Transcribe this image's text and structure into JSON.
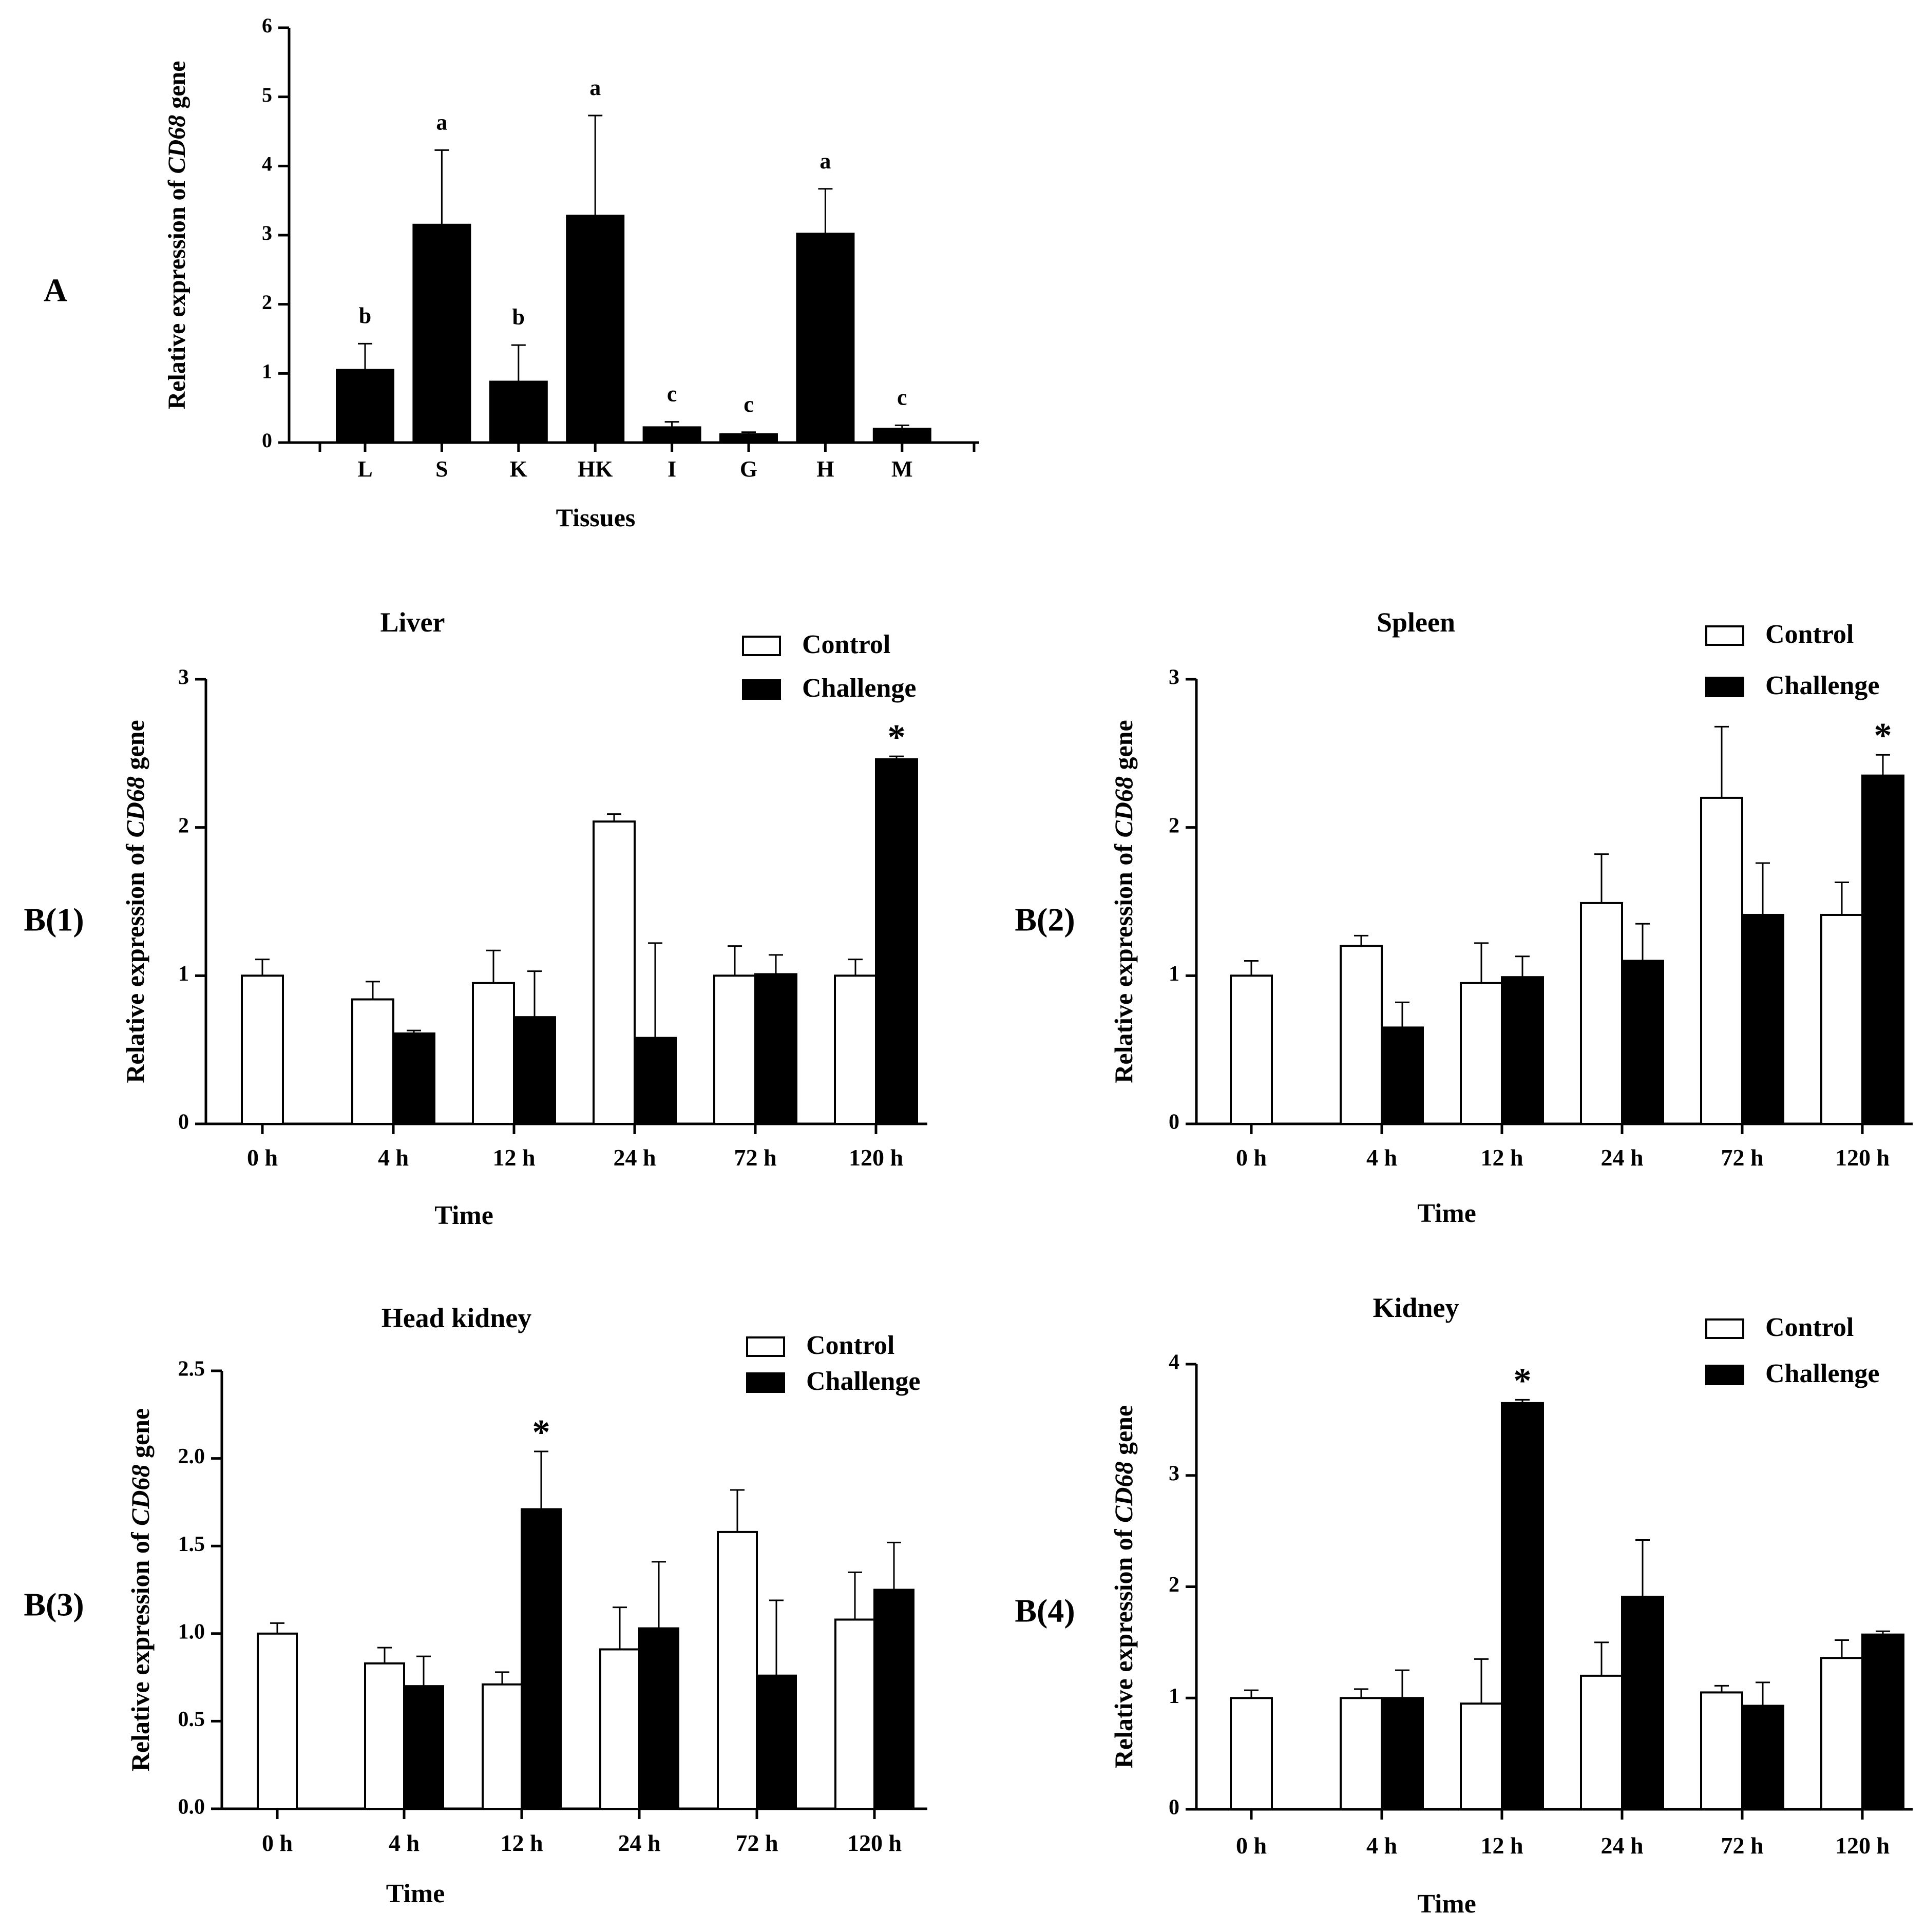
{
  "chart_data": [
    {
      "id": "A",
      "type": "bar",
      "panel_label": "A",
      "title": "",
      "xlabel": "Tissues",
      "ylabel_prefix": "Relative expression of ",
      "ylabel_gene": "CD68",
      "ylabel_suffix": " gene",
      "ylim": [
        0,
        6
      ],
      "yticks": [
        "0",
        "1",
        "2",
        "3",
        "4",
        "5",
        "6"
      ],
      "categories": [
        "L",
        "S",
        "K",
        "HK",
        "I",
        "G",
        "H",
        "M"
      ],
      "series": [
        {
          "name": "Relative expression",
          "color": "#000000",
          "values": [
            1.05,
            3.15,
            0.88,
            3.28,
            0.22,
            0.12,
            3.02,
            0.2
          ],
          "errors": [
            0.38,
            1.08,
            0.53,
            1.45,
            0.08,
            0.03,
            0.65,
            0.05
          ]
        }
      ],
      "annotations": [
        "b",
        "a",
        "b",
        "a",
        "c",
        "c",
        "a",
        "c"
      ]
    },
    {
      "id": "B1",
      "type": "bar",
      "panel_label": "B(1)",
      "title": "Liver",
      "xlabel": "Time",
      "ylabel_prefix": "Relative expression of ",
      "ylabel_gene": "CD68",
      "ylabel_suffix": " gene",
      "ylim": [
        0,
        3
      ],
      "yticks": [
        "0",
        "1",
        "2",
        "3"
      ],
      "categories": [
        "0 h",
        "4 h",
        "12 h",
        "24 h",
        "72 h",
        "120 h"
      ],
      "legend": [
        "Control",
        "Challenge"
      ],
      "series": [
        {
          "name": "Control",
          "color": "#ffffff",
          "values": [
            1.0,
            0.84,
            0.95,
            2.04,
            1.0,
            1.0
          ],
          "errors": [
            0.11,
            0.12,
            0.22,
            0.05,
            0.2,
            0.11
          ]
        },
        {
          "name": "Challenge",
          "color": "#000000",
          "values": [
            null,
            0.61,
            0.72,
            0.58,
            1.01,
            2.46
          ],
          "errors": [
            null,
            0.02,
            0.31,
            0.64,
            0.13,
            0.02
          ]
        }
      ],
      "significance": [
        "",
        "",
        "",
        "",
        "",
        "*"
      ]
    },
    {
      "id": "B2",
      "type": "bar",
      "panel_label": "B(2)",
      "title": "Spleen",
      "xlabel": "Time",
      "ylabel_prefix": "Relative expression of ",
      "ylabel_gene": "CD68",
      "ylabel_suffix": " gene",
      "ylim": [
        0,
        3
      ],
      "yticks": [
        "0",
        "1",
        "2",
        "3"
      ],
      "categories": [
        "0 h",
        "4 h",
        "12 h",
        "24 h",
        "72 h",
        "120 h"
      ],
      "legend": [
        "Control",
        "Challenge"
      ],
      "series": [
        {
          "name": "Control",
          "color": "#ffffff",
          "values": [
            1.0,
            1.2,
            0.95,
            1.49,
            2.2,
            1.41
          ],
          "errors": [
            0.1,
            0.07,
            0.27,
            0.33,
            0.48,
            0.22
          ]
        },
        {
          "name": "Challenge",
          "color": "#000000",
          "values": [
            null,
            0.65,
            0.99,
            1.1,
            1.41,
            2.35
          ],
          "errors": [
            null,
            0.17,
            0.14,
            0.25,
            0.35,
            0.14
          ]
        }
      ],
      "significance": [
        "",
        "",
        "",
        "",
        "",
        "*"
      ]
    },
    {
      "id": "B3",
      "type": "bar",
      "panel_label": "B(3)",
      "title": "Head kidney",
      "xlabel": "Time",
      "ylabel_prefix": "Relative expression of ",
      "ylabel_gene": "CD68",
      "ylabel_suffix": " gene",
      "ylim": [
        0,
        2.5
      ],
      "yticks": [
        "0.0",
        "0.5",
        "1.0",
        "1.5",
        "2.0",
        "2.5"
      ],
      "categories": [
        "0 h",
        "4 h",
        "12 h",
        "24 h",
        "72 h",
        "120 h"
      ],
      "legend": [
        "Control",
        "Challenge"
      ],
      "series": [
        {
          "name": "Control",
          "color": "#ffffff",
          "values": [
            1.0,
            0.83,
            0.71,
            0.91,
            1.58,
            1.08
          ],
          "errors": [
            0.06,
            0.09,
            0.07,
            0.24,
            0.24,
            0.27
          ]
        },
        {
          "name": "Challenge",
          "color": "#000000",
          "values": [
            null,
            0.7,
            1.71,
            1.03,
            0.76,
            1.25
          ],
          "errors": [
            null,
            0.17,
            0.33,
            0.38,
            0.43,
            0.27
          ]
        }
      ],
      "significance": [
        "",
        "",
        "*",
        "",
        "",
        ""
      ]
    },
    {
      "id": "B4",
      "type": "bar",
      "panel_label": "B(4)",
      "title": "Kidney",
      "xlabel": "Time",
      "ylabel_prefix": "Relative expression of ",
      "ylabel_gene": "CD68",
      "ylabel_suffix": " gene",
      "ylim": [
        0,
        4
      ],
      "yticks": [
        "0",
        "1",
        "2",
        "3",
        "4"
      ],
      "categories": [
        "0 h",
        "4 h",
        "12 h",
        "24 h",
        "72 h",
        "120 h"
      ],
      "legend": [
        "Control",
        "Challenge"
      ],
      "series": [
        {
          "name": "Control",
          "color": "#ffffff",
          "values": [
            1.0,
            1.0,
            0.95,
            1.2,
            1.05,
            1.36
          ],
          "errors": [
            0.07,
            0.08,
            0.4,
            0.3,
            0.06,
            0.16
          ]
        },
        {
          "name": "Challenge",
          "color": "#000000",
          "values": [
            null,
            1.0,
            3.65,
            1.91,
            0.93,
            1.57
          ],
          "errors": [
            null,
            0.25,
            0.03,
            0.51,
            0.21,
            0.03
          ]
        }
      ],
      "significance": [
        "",
        "",
        "*",
        "",
        "",
        ""
      ]
    }
  ]
}
